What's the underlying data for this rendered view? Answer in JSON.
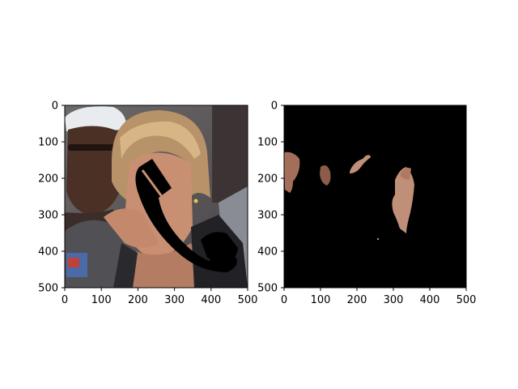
{
  "chart_data": [
    {
      "type": "image",
      "subject": "photo of a woman holding a black telephone handset to her face, another person in the background",
      "xlim": [
        0,
        500
      ],
      "ylim": [
        500,
        0
      ],
      "xticks": [
        0,
        100,
        200,
        300,
        400,
        500
      ],
      "yticks": [
        0,
        100,
        200,
        300,
        400,
        500
      ],
      "xtick_labels": [
        "0",
        "100",
        "200",
        "300",
        "400",
        "500"
      ],
      "ytick_labels": [
        "0",
        "100",
        "200",
        "300",
        "400",
        "500"
      ]
    },
    {
      "type": "image",
      "subject": "skin segmentation mask: skin-colored regions visible on a black background",
      "xlim": [
        0,
        500
      ],
      "ylim": [
        500,
        0
      ],
      "xticks": [
        0,
        100,
        200,
        300,
        400,
        500
      ],
      "yticks": [
        0,
        100,
        200,
        300,
        400,
        500
      ],
      "xtick_labels": [
        "0",
        "100",
        "200",
        "300",
        "400",
        "500"
      ],
      "ytick_labels": [
        "0",
        "100",
        "200",
        "300",
        "400",
        "500"
      ]
    }
  ],
  "colors": {
    "axes_edge": "#000000",
    "mask_background": "#000000",
    "skin": "#c08f78"
  }
}
